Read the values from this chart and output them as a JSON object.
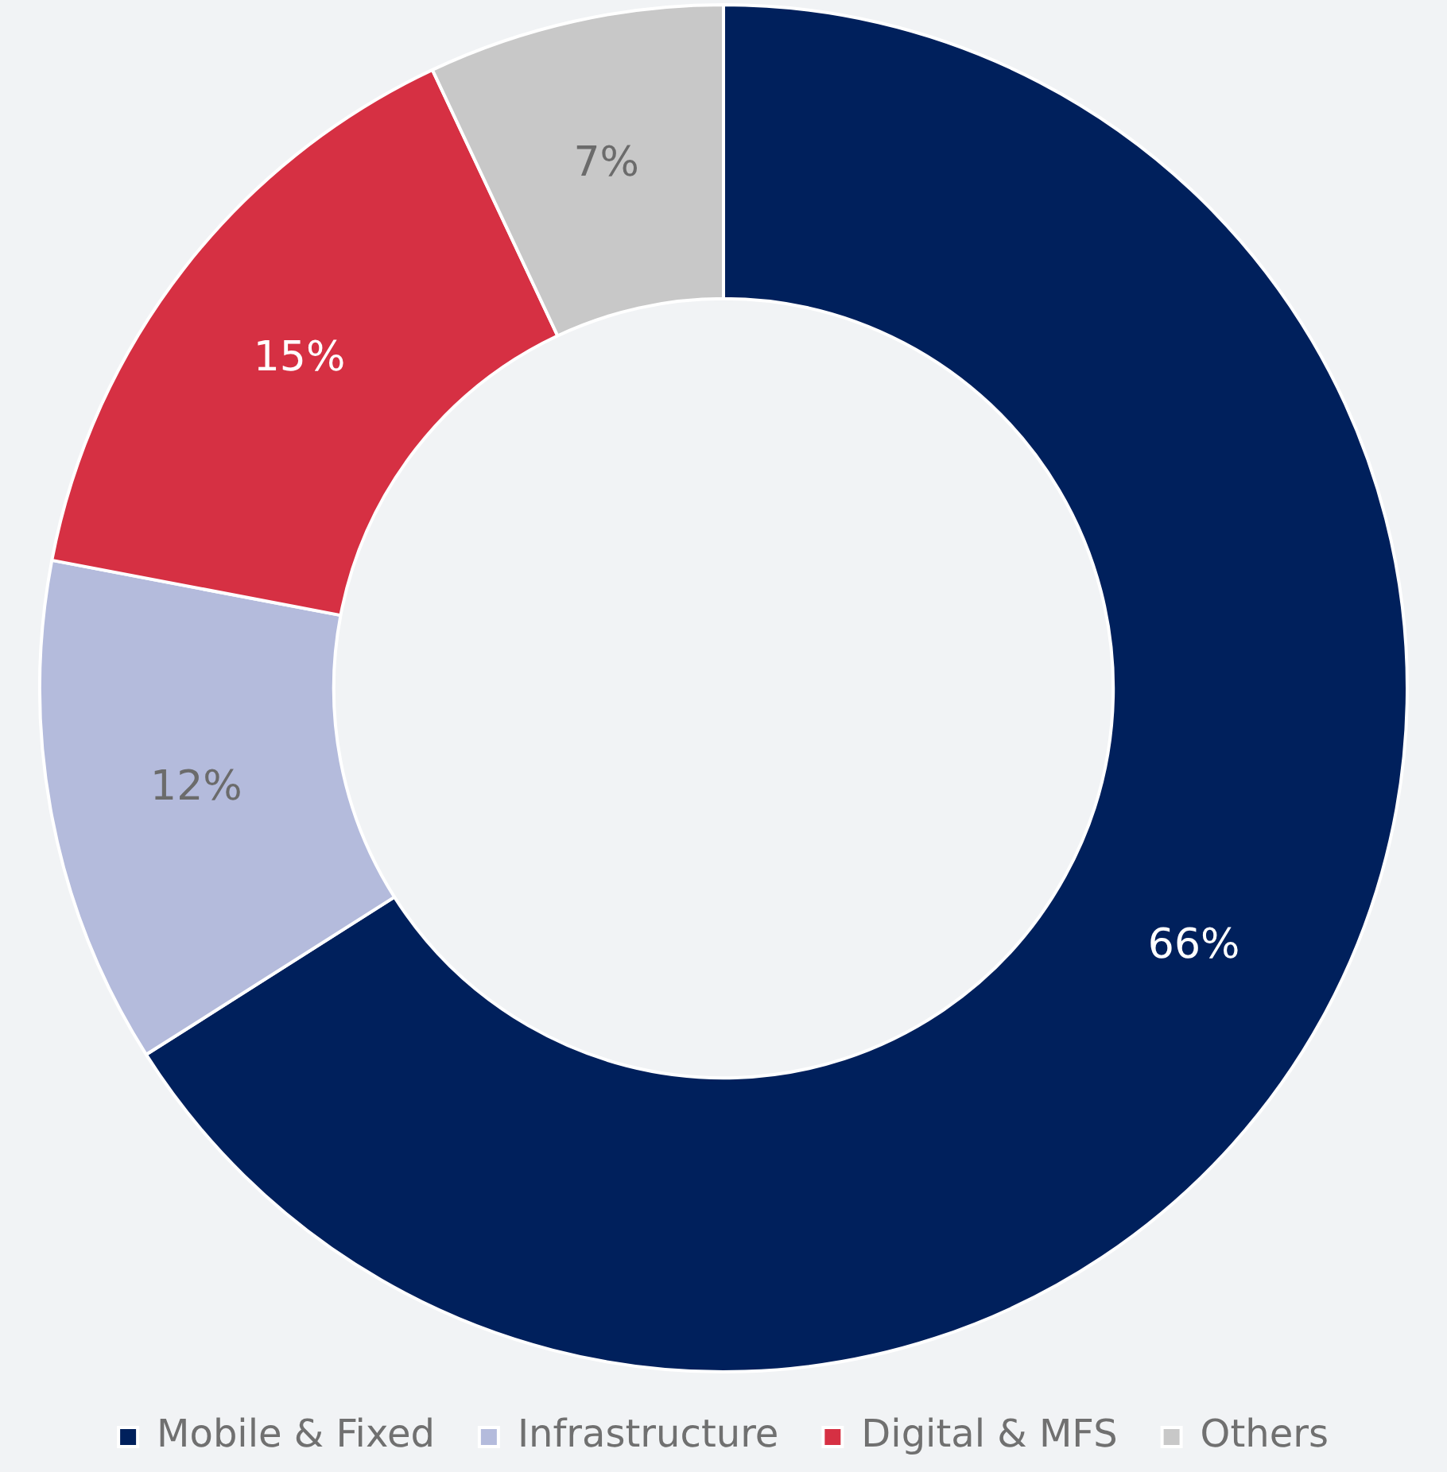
{
  "chart_data": {
    "type": "donut",
    "categories": [
      "Mobile & Fixed",
      "Infrastructure",
      "Digital & MFS",
      "Others"
    ],
    "values": [
      66,
      12,
      15,
      7
    ],
    "value_labels": [
      "66%",
      "12%",
      "15%",
      "7%"
    ],
    "colors": [
      "#00205c",
      "#b4bbdc",
      "#d63043",
      "#c8c8c8"
    ],
    "legend": "bottom"
  }
}
